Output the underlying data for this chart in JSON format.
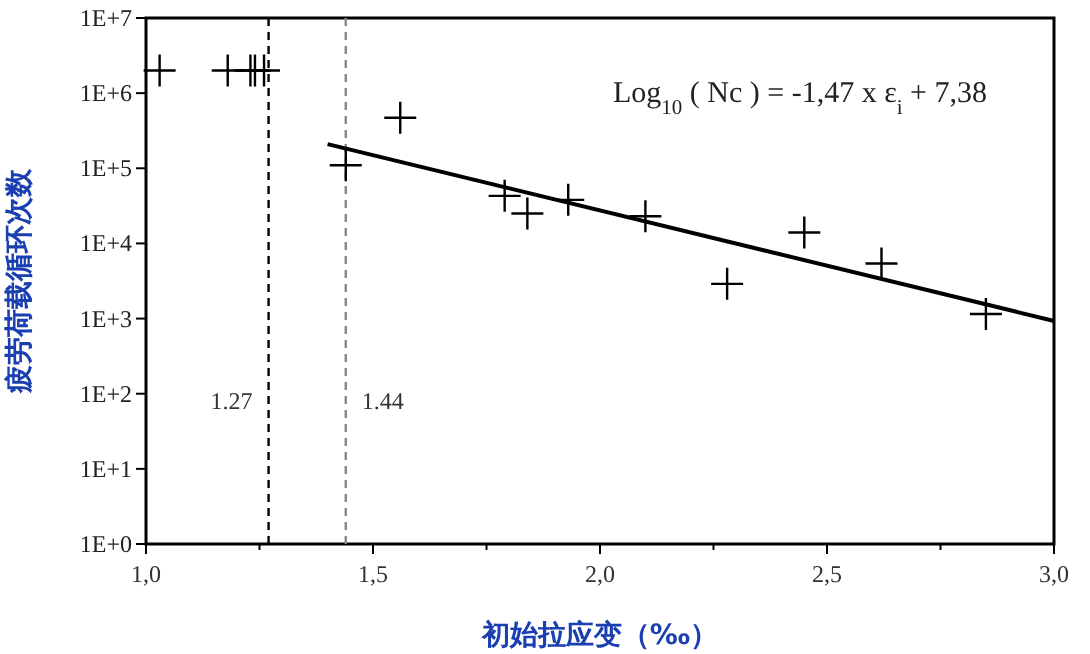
{
  "chart_data": {
    "type": "scatter",
    "xlabel": "初始拉应变（‰）",
    "ylabel": "疲劳荷载循环次数",
    "log": "y",
    "grid": false,
    "xlim": [
      1.0,
      3.0
    ],
    "xticks": [
      {
        "value": 1.0,
        "label": "1,0"
      },
      {
        "value": 1.25,
        "label": null
      },
      {
        "value": 1.5,
        "label": "1,5"
      },
      {
        "value": 1.75,
        "label": null
      },
      {
        "value": 2.0,
        "label": "2,0"
      },
      {
        "value": 2.25,
        "label": null
      },
      {
        "value": 2.5,
        "label": "2,5"
      },
      {
        "value": 2.75,
        "label": null
      },
      {
        "value": 3.0,
        "label": "3,0"
      }
    ],
    "ylim": [
      1,
      10000000
    ],
    "yticks": [
      {
        "value": 1,
        "label": "1E+0"
      },
      {
        "value": 10,
        "label": "1E+1"
      },
      {
        "value": 100,
        "label": "1E+2"
      },
      {
        "value": 1000,
        "label": "1E+3"
      },
      {
        "value": 10000,
        "label": "1E+4"
      },
      {
        "value": 100000,
        "label": "1E+5"
      },
      {
        "value": 1000000,
        "label": "1E+6"
      },
      {
        "value": 10000000,
        "label": "1E+7"
      }
    ],
    "series": [
      {
        "marker": "cross",
        "color": "#000000",
        "x": [
          1.03,
          1.18,
          1.23,
          1.24,
          1.26,
          1.44,
          1.56,
          1.79,
          1.84,
          1.93,
          2.1,
          2.28,
          2.45,
          2.62,
          2.85
        ],
        "values": [
          2000000,
          2000000,
          2000000,
          2000000,
          2000000,
          110000,
          470000,
          43000,
          25000,
          38000,
          23000,
          2900,
          14000,
          5400,
          1150
        ]
      },
      {
        "type": "line",
        "color": "#000000",
        "x": [
          1.4,
          3.0
        ],
        "values": [
          210000,
          930
        ]
      }
    ],
    "ref_lines": [
      {
        "axis": "x",
        "value": 1.27,
        "label": "1.27",
        "color": "#000000",
        "line_style": "dashed"
      },
      {
        "axis": "x",
        "value": 1.44,
        "label": "1.44",
        "color": "#888888",
        "line_style": "dashed"
      }
    ],
    "annotations": [
      "Log$_{10}$ ( Nc ) = -1,47 x ε$_{i}$ + 7,38"
    ]
  }
}
